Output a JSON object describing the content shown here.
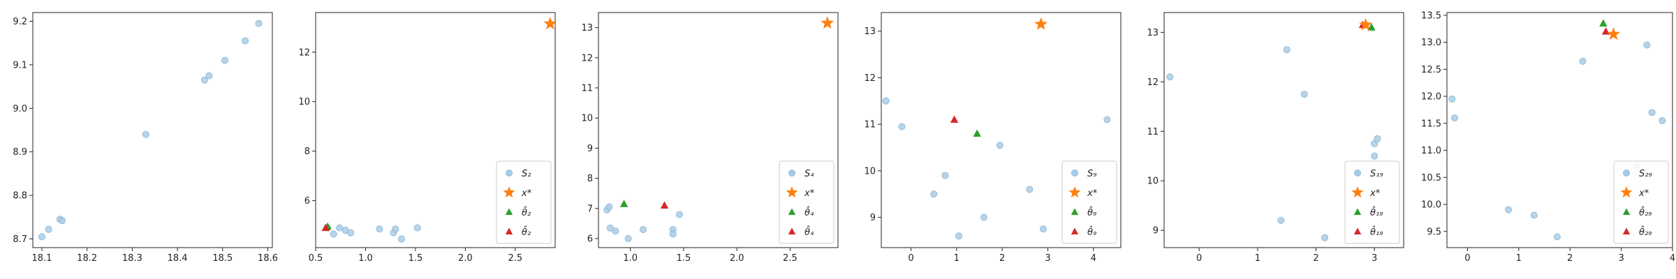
{
  "colors": {
    "points": "#a9cce6",
    "points_edge": "#8ab4d4",
    "star": "#ff7f0e",
    "green": "#2ca02c",
    "red": "#d62728",
    "axis": "#222222"
  },
  "chart_data": [
    {
      "type": "scatter",
      "xlim": [
        18.08,
        18.61
      ],
      "ylim": [
        8.68,
        9.22
      ],
      "xticks": [
        "18.1",
        "18.2",
        "18.3",
        "18.4",
        "18.5",
        "18.6"
      ],
      "yticks": [
        "8.7",
        "8.8",
        "8.9",
        "9.0",
        "9.1",
        "9.2"
      ],
      "xtick_values": [
        18.1,
        18.2,
        18.3,
        18.4,
        18.5,
        18.6
      ],
      "ytick_values": [
        8.7,
        8.8,
        8.9,
        9.0,
        9.1,
        9.2
      ],
      "points": [
        [
          18.1,
          8.705
        ],
        [
          18.115,
          8.722
        ],
        [
          18.14,
          8.745
        ],
        [
          18.145,
          8.742
        ],
        [
          18.33,
          8.94
        ],
        [
          18.46,
          9.065
        ],
        [
          18.47,
          9.075
        ],
        [
          18.505,
          9.11
        ],
        [
          18.55,
          9.155
        ],
        [
          18.58,
          9.195
        ]
      ],
      "star": null,
      "green": null,
      "red": null,
      "legend": []
    },
    {
      "type": "scatter",
      "xlim": [
        0.5,
        2.9
      ],
      "ylim": [
        4.1,
        13.6
      ],
      "xticks": [
        "0.5",
        "1.0",
        "1.5",
        "2.0",
        "2.5"
      ],
      "yticks": [
        "6",
        "8",
        "10",
        "12"
      ],
      "xtick_values": [
        0.5,
        1.0,
        1.5,
        2.0,
        2.5
      ],
      "ytick_values": [
        6,
        8,
        10,
        12
      ],
      "points": [
        [
          0.62,
          4.9
        ],
        [
          0.68,
          4.65
        ],
        [
          0.74,
          4.9
        ],
        [
          0.8,
          4.8
        ],
        [
          0.85,
          4.7
        ],
        [
          1.14,
          4.85
        ],
        [
          1.28,
          4.7
        ],
        [
          1.3,
          4.85
        ],
        [
          1.36,
          4.45
        ],
        [
          1.52,
          4.9
        ]
      ],
      "star": [
        2.85,
        13.15
      ],
      "green": [
        0.62,
        4.95
      ],
      "red": [
        0.6,
        4.9
      ],
      "legend": [
        "S₂",
        "x*",
        "θ̂₂",
        "θ̂₂"
      ]
    },
    {
      "type": "scatter",
      "xlim": [
        0.7,
        2.95
      ],
      "ylim": [
        5.7,
        13.5
      ],
      "xticks": [
        "1.0",
        "1.5",
        "2.0",
        "2.5"
      ],
      "yticks": [
        "6",
        "7",
        "8",
        "9",
        "10",
        "11",
        "12",
        "13"
      ],
      "xtick_values": [
        1.0,
        1.5,
        2.0,
        2.5
      ],
      "ytick_values": [
        6,
        7,
        8,
        9,
        10,
        11,
        12,
        13
      ],
      "points": [
        [
          0.78,
          6.95
        ],
        [
          0.8,
          7.05
        ],
        [
          0.81,
          6.35
        ],
        [
          0.86,
          6.25
        ],
        [
          0.98,
          6.0
        ],
        [
          1.12,
          6.3
        ],
        [
          1.4,
          6.3
        ],
        [
          1.4,
          6.15
        ],
        [
          1.46,
          6.8
        ]
      ],
      "star": [
        2.85,
        13.15
      ],
      "green": [
        0.94,
        7.15
      ],
      "red": [
        1.32,
        7.1
      ],
      "legend": [
        "S₄",
        "x*",
        "θ̂₄",
        "θ̂₄"
      ]
    },
    {
      "type": "scatter",
      "xlim": [
        -0.65,
        4.6
      ],
      "ylim": [
        8.35,
        13.4
      ],
      "xticks": [
        "0",
        "1",
        "2",
        "3",
        "4"
      ],
      "yticks": [
        "9",
        "10",
        "11",
        "12",
        "13"
      ],
      "xtick_values": [
        0,
        1,
        2,
        3,
        4
      ],
      "ytick_values": [
        9,
        10,
        11,
        12,
        13
      ],
      "points": [
        [
          -0.55,
          11.5
        ],
        [
          -0.2,
          10.95
        ],
        [
          0.5,
          9.5
        ],
        [
          0.75,
          9.9
        ],
        [
          1.05,
          8.6
        ],
        [
          1.6,
          9.0
        ],
        [
          1.95,
          10.55
        ],
        [
          2.6,
          9.6
        ],
        [
          2.9,
          8.75
        ],
        [
          4.3,
          11.1
        ]
      ],
      "star": [
        2.85,
        13.15
      ],
      "green": [
        1.45,
        10.8
      ],
      "red": [
        0.95,
        11.1
      ],
      "legend": [
        "S₉",
        "x*",
        "θ̂₉",
        "θ̂₉"
      ]
    },
    {
      "type": "scatter",
      "xlim": [
        -0.6,
        3.5
      ],
      "ylim": [
        8.65,
        13.4
      ],
      "xticks": [
        "0",
        "1",
        "2",
        "3"
      ],
      "yticks": [
        "9",
        "10",
        "11",
        "12",
        "13"
      ],
      "xtick_values": [
        0,
        1,
        2,
        3
      ],
      "ytick_values": [
        9,
        10,
        11,
        12,
        13
      ],
      "points": [
        [
          -0.5,
          12.1
        ],
        [
          1.4,
          9.2
        ],
        [
          1.5,
          12.65
        ],
        [
          1.8,
          11.75
        ],
        [
          2.15,
          8.85
        ],
        [
          3.0,
          10.5
        ],
        [
          3.0,
          10.75
        ],
        [
          3.05,
          10.85
        ]
      ],
      "star": [
        2.85,
        13.15
      ],
      "green": [
        2.95,
        13.1
      ],
      "red": [
        2.8,
        13.15
      ],
      "legend": [
        "S₁₉",
        "x*",
        "θ̂₁₉",
        "θ̂₁₉"
      ]
    },
    {
      "type": "scatter",
      "xlim": [
        -0.4,
        4.0
      ],
      "ylim": [
        9.2,
        13.55
      ],
      "xticks": [
        "0",
        "1",
        "2",
        "3",
        "4"
      ],
      "yticks": [
        "9.5",
        "10.0",
        "10.5",
        "11.0",
        "11.5",
        "12.0",
        "12.5",
        "13.0",
        "13.5"
      ],
      "xtick_values": [
        0,
        1,
        2,
        3,
        4
      ],
      "ytick_values": [
        9.5,
        10.0,
        10.5,
        11.0,
        11.5,
        12.0,
        12.5,
        13.0,
        13.5
      ],
      "points": [
        [
          -0.3,
          11.95
        ],
        [
          -0.25,
          11.6
        ],
        [
          0.8,
          9.9
        ],
        [
          1.3,
          9.8
        ],
        [
          1.75,
          9.4
        ],
        [
          2.25,
          12.65
        ],
        [
          3.3,
          10.7
        ],
        [
          3.5,
          12.95
        ],
        [
          3.6,
          11.7
        ],
        [
          3.8,
          11.55
        ]
      ],
      "star": [
        2.85,
        13.15
      ],
      "green": [
        2.65,
        13.35
      ],
      "red": [
        2.7,
        13.2
      ],
      "legend": [
        "S₂₉",
        "x*",
        "θ̂₂₉",
        "θ̂₂₉"
      ]
    }
  ]
}
